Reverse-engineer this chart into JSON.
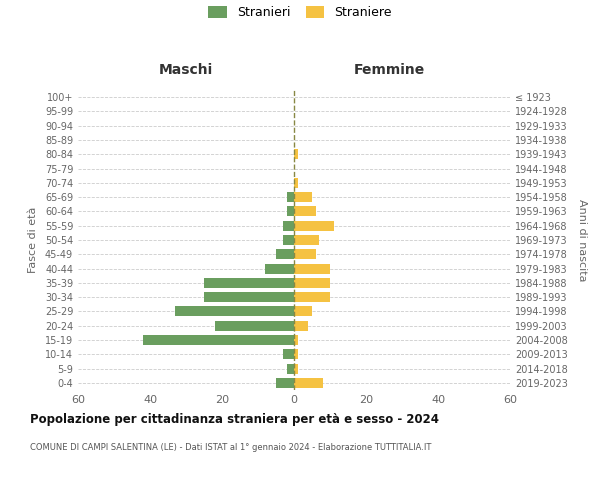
{
  "age_groups": [
    "0-4",
    "5-9",
    "10-14",
    "15-19",
    "20-24",
    "25-29",
    "30-34",
    "35-39",
    "40-44",
    "45-49",
    "50-54",
    "55-59",
    "60-64",
    "65-69",
    "70-74",
    "75-79",
    "80-84",
    "85-89",
    "90-94",
    "95-99",
    "100+"
  ],
  "birth_years": [
    "2019-2023",
    "2014-2018",
    "2009-2013",
    "2004-2008",
    "1999-2003",
    "1994-1998",
    "1989-1993",
    "1984-1988",
    "1979-1983",
    "1974-1978",
    "1969-1973",
    "1964-1968",
    "1959-1963",
    "1954-1958",
    "1949-1953",
    "1944-1948",
    "1939-1943",
    "1934-1938",
    "1929-1933",
    "1924-1928",
    "≤ 1923"
  ],
  "maschi": [
    5,
    2,
    3,
    42,
    22,
    33,
    25,
    25,
    8,
    5,
    3,
    3,
    2,
    2,
    0,
    0,
    0,
    0,
    0,
    0,
    0
  ],
  "femmine": [
    8,
    1,
    1,
    1,
    4,
    5,
    10,
    10,
    10,
    6,
    7,
    11,
    6,
    5,
    1,
    0,
    1,
    0,
    0,
    0,
    0
  ],
  "male_color": "#6a9e5f",
  "female_color": "#f5c242",
  "title": "Popolazione per cittadinanza straniera per età e sesso - 2024",
  "subtitle": "COMUNE DI CAMPI SALENTINA (LE) - Dati ISTAT al 1° gennaio 2024 - Elaborazione TUTTITALIA.IT",
  "header_left": "Maschi",
  "header_right": "Femmine",
  "ylabel_left": "Fasce di età",
  "ylabel_right": "Anni di nascita",
  "legend_male": "Stranieri",
  "legend_female": "Straniere",
  "xlim": 60,
  "background_color": "#ffffff",
  "grid_color": "#cccccc",
  "center_line_color": "#888844",
  "tick_color": "#888888",
  "label_color": "#666666"
}
